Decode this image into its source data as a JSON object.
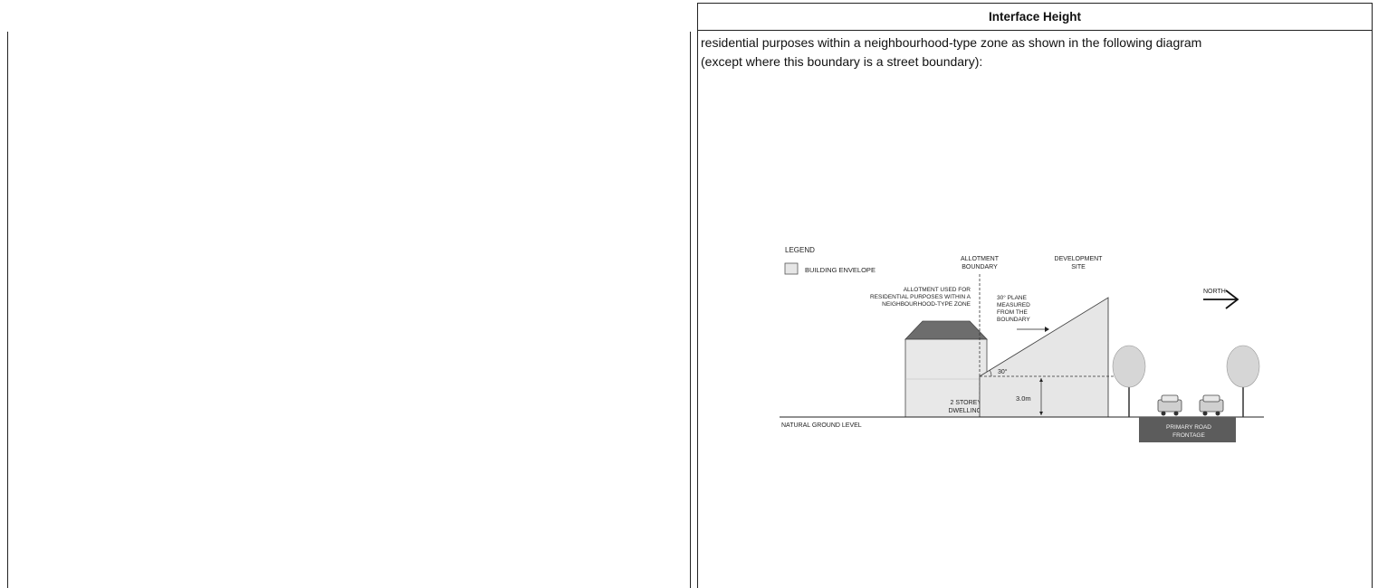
{
  "section": {
    "header": "Interface Height",
    "body_line1": "residential purposes within a neighbourhood-type zone as shown in the following diagram",
    "body_line2": "(except where this boundary is a street boundary):"
  },
  "diagram": {
    "legend_title": "LEGEND",
    "legend_item": "BUILDING ENVELOPE",
    "allotment_boundary_1": "ALLOTMENT",
    "allotment_boundary_2": "BOUNDARY",
    "development_site_1": "DEVELOPMENT",
    "development_site_2": "SITE",
    "allotment_used_1": "ALLOTMENT USED FOR",
    "allotment_used_2": "RESIDENTIAL PURPOSES WITHIN A",
    "allotment_used_3": "NEIGHBOURHOOD-TYPE ZONE",
    "plane_1": "30° PLANE",
    "plane_2": "MEASURED",
    "plane_3": "FROM THE",
    "plane_4": "BOUNDARY",
    "north": "NORTH",
    "angle": "30°",
    "height": "3.0m",
    "dwelling_1": "2 STOREY",
    "dwelling_2": "DWELLING",
    "ground": "NATURAL GROUND LEVEL",
    "road_1": "PRIMARY ROAD",
    "road_2": "FRONTAGE"
  }
}
